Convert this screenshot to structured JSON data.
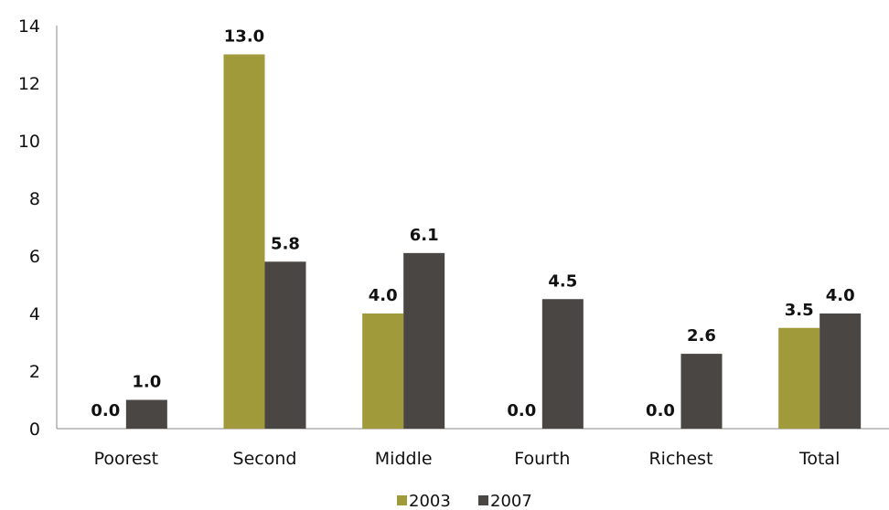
{
  "chart_data": {
    "type": "bar",
    "categories": [
      "Poorest",
      "Second",
      "Middle",
      "Fourth",
      "Richest",
      "Total"
    ],
    "series": [
      {
        "name": "2003",
        "values": [
          0.0,
          13.0,
          4.0,
          0.0,
          0.0,
          3.5
        ],
        "labels": [
          "0.0",
          "13.0",
          "4.0",
          "0.0",
          "0.0",
          "3.5"
        ],
        "color": "#a09a3a"
      },
      {
        "name": "2007",
        "values": [
          1.0,
          5.8,
          6.1,
          4.5,
          2.6,
          4.0
        ],
        "labels": [
          "1.0",
          "5.8",
          "6.1",
          "4.5",
          "2.6",
          "4.0"
        ],
        "color": "#4a4644"
      }
    ],
    "yticks": [
      "0",
      "2",
      "4",
      "6",
      "8",
      "10",
      "12",
      "14"
    ],
    "ylim": [
      0,
      14
    ],
    "grid": false,
    "legend_position": "bottom"
  }
}
